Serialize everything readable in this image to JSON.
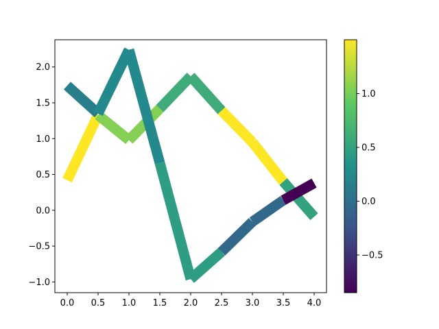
{
  "chart_data": {
    "type": "line",
    "title": "",
    "xlabel": "",
    "ylabel": "",
    "xlim": [
      -0.2,
      4.2
    ],
    "ylim": [
      -1.15,
      2.38
    ],
    "xticks": [
      0.0,
      0.5,
      1.0,
      1.5,
      2.0,
      2.5,
      3.0,
      3.5,
      4.0
    ],
    "xtick_labels": [
      "0.0",
      "0.5",
      "1.0",
      "1.5",
      "2.0",
      "2.5",
      "3.0",
      "3.5",
      "4.0"
    ],
    "yticks": [
      -1.0,
      -0.5,
      0.0,
      0.5,
      1.0,
      1.5,
      2.0
    ],
    "ytick_labels": [
      "−1.0",
      "−0.5",
      "0.0",
      "0.5",
      "1.0",
      "1.5",
      "2.0"
    ],
    "grid": false,
    "colormap": "viridis",
    "colorbar": {
      "range": [
        -0.85,
        1.5
      ],
      "ticks": [
        -0.5,
        0.0,
        0.5,
        1.0
      ],
      "tick_labels": [
        "−0.5",
        "0.0",
        "0.5",
        "1.0"
      ]
    },
    "series": [
      {
        "x": [
          0.0,
          0.5,
          1.0,
          1.5,
          2.0,
          2.5,
          3.0,
          3.5,
          4.0
        ],
        "y": [
          0.42,
          1.33,
          0.98,
          1.42,
          1.87,
          1.39,
          0.95,
          0.4,
          -0.09
        ],
        "segment_values": [
          1.5,
          1.05,
          1.05,
          0.6,
          0.6,
          1.5,
          1.5,
          0.5
        ]
      },
      {
        "x": [
          0.0,
          0.5,
          1.0,
          1.5,
          2.0,
          2.5,
          3.0,
          3.5,
          4.0
        ],
        "y": [
          1.74,
          1.35,
          2.24,
          0.66,
          -0.96,
          -0.58,
          -0.16,
          0.14,
          0.38
        ],
        "segment_values": [
          0.15,
          0.25,
          0.25,
          0.45,
          0.45,
          -0.05,
          -0.05,
          -0.85
        ]
      }
    ]
  }
}
